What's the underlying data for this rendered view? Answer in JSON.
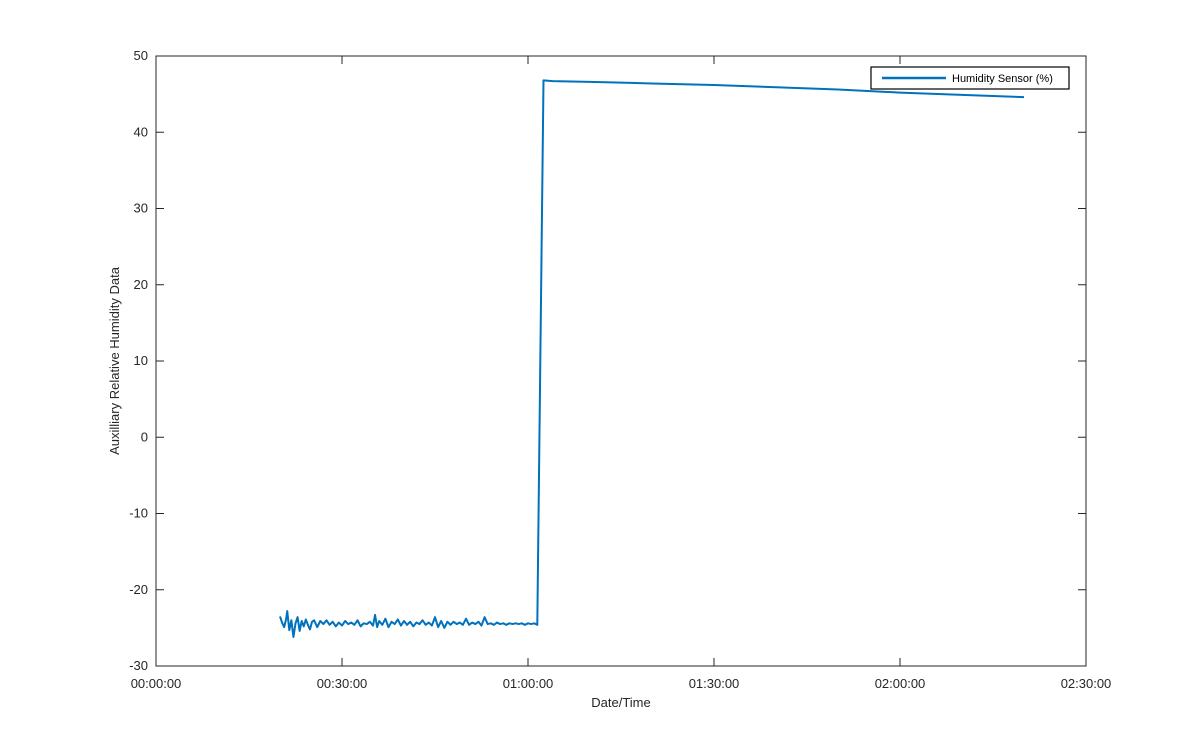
{
  "chart_data": {
    "type": "line",
    "xlabel": "Date/Time",
    "ylabel": "Auxilliary Relative Humidity Data",
    "x_tick_labels": [
      "00:00:00",
      "00:30:00",
      "01:00:00",
      "01:30:00",
      "02:00:00",
      "02:30:00"
    ],
    "y_tick_labels": [
      "-30",
      "-20",
      "-10",
      "0",
      "10",
      "20",
      "30",
      "40",
      "50"
    ],
    "xlim": [
      "00:00:00",
      "02:30:00"
    ],
    "ylim": [
      -30,
      50
    ],
    "grid": false,
    "legend_position": "top-right",
    "series": [
      {
        "name": "Humidity Sensor (%)",
        "color": "#0072BD",
        "points": [
          [
            "00:20:00",
            -23.5
          ],
          [
            "00:20:20",
            -24.3
          ],
          [
            "00:20:40",
            -24.9
          ],
          [
            "00:21:00",
            -23.8
          ],
          [
            "00:21:10",
            -22.8
          ],
          [
            "00:21:30",
            -25.3
          ],
          [
            "00:21:50",
            -24.0
          ],
          [
            "00:22:10",
            -26.2
          ],
          [
            "00:22:30",
            -24.4
          ],
          [
            "00:22:50",
            -23.6
          ],
          [
            "00:23:10",
            -25.4
          ],
          [
            "00:23:30",
            -24.1
          ],
          [
            "00:23:50",
            -24.8
          ],
          [
            "00:24:10",
            -23.9
          ],
          [
            "00:24:30",
            -24.6
          ],
          [
            "00:24:50",
            -25.2
          ],
          [
            "00:25:10",
            -24.2
          ],
          [
            "00:25:30",
            -24.0
          ],
          [
            "00:26:00",
            -24.9
          ],
          [
            "00:26:30",
            -24.1
          ],
          [
            "00:27:00",
            -24.5
          ],
          [
            "00:27:30",
            -24.0
          ],
          [
            "00:28:00",
            -24.6
          ],
          [
            "00:28:30",
            -24.2
          ],
          [
            "00:29:00",
            -24.8
          ],
          [
            "00:29:30",
            -24.3
          ],
          [
            "00:30:00",
            -24.7
          ],
          [
            "00:30:30",
            -24.1
          ],
          [
            "00:31:00",
            -24.5
          ],
          [
            "00:31:30",
            -24.3
          ],
          [
            "00:32:00",
            -24.6
          ],
          [
            "00:32:30",
            -24.0
          ],
          [
            "00:33:00",
            -24.8
          ],
          [
            "00:33:30",
            -24.4
          ],
          [
            "00:34:00",
            -24.5
          ],
          [
            "00:34:30",
            -24.2
          ],
          [
            "00:35:00",
            -24.7
          ],
          [
            "00:35:20",
            -23.3
          ],
          [
            "00:35:40",
            -24.9
          ],
          [
            "00:36:00",
            -24.1
          ],
          [
            "00:36:30",
            -24.6
          ],
          [
            "00:37:00",
            -23.8
          ],
          [
            "00:37:30",
            -24.9
          ],
          [
            "00:38:00",
            -24.2
          ],
          [
            "00:38:30",
            -24.5
          ],
          [
            "00:39:00",
            -23.9
          ],
          [
            "00:39:30",
            -24.7
          ],
          [
            "00:40:00",
            -24.1
          ],
          [
            "00:40:30",
            -24.6
          ],
          [
            "00:41:00",
            -24.2
          ],
          [
            "00:41:30",
            -24.8
          ],
          [
            "00:42:00",
            -24.3
          ],
          [
            "00:42:30",
            -24.5
          ],
          [
            "00:43:00",
            -24.0
          ],
          [
            "00:43:30",
            -24.6
          ],
          [
            "00:44:00",
            -24.3
          ],
          [
            "00:44:30",
            -24.7
          ],
          [
            "00:45:00",
            -23.6
          ],
          [
            "00:45:30",
            -24.9
          ],
          [
            "00:46:00",
            -24.1
          ],
          [
            "00:46:30",
            -25.0
          ],
          [
            "00:47:00",
            -24.2
          ],
          [
            "00:47:30",
            -24.6
          ],
          [
            "00:48:00",
            -24.2
          ],
          [
            "00:48:30",
            -24.5
          ],
          [
            "00:49:00",
            -24.3
          ],
          [
            "00:49:30",
            -24.6
          ],
          [
            "00:50:00",
            -23.8
          ],
          [
            "00:50:30",
            -24.6
          ],
          [
            "00:51:00",
            -24.3
          ],
          [
            "00:51:30",
            -24.5
          ],
          [
            "00:52:00",
            -24.2
          ],
          [
            "00:52:30",
            -24.7
          ],
          [
            "00:53:00",
            -23.6
          ],
          [
            "00:53:30",
            -24.5
          ],
          [
            "00:54:00",
            -24.4
          ],
          [
            "00:54:30",
            -24.6
          ],
          [
            "00:55:00",
            -24.3
          ],
          [
            "00:55:30",
            -24.5
          ],
          [
            "00:56:00",
            -24.4
          ],
          [
            "00:56:30",
            -24.6
          ],
          [
            "00:57:00",
            -24.4
          ],
          [
            "00:57:30",
            -24.5
          ],
          [
            "00:58:00",
            -24.4
          ],
          [
            "00:58:30",
            -24.5
          ],
          [
            "00:59:00",
            -24.4
          ],
          [
            "00:59:30",
            -24.6
          ],
          [
            "01:00:00",
            -24.4
          ],
          [
            "01:00:30",
            -24.5
          ],
          [
            "01:01:00",
            -24.4
          ],
          [
            "01:01:30",
            -24.6
          ],
          [
            "01:02:30",
            46.8
          ],
          [
            "01:04:00",
            46.7
          ],
          [
            "01:10:00",
            46.6
          ],
          [
            "01:20:00",
            46.4
          ],
          [
            "01:30:00",
            46.2
          ],
          [
            "01:40:00",
            45.9
          ],
          [
            "01:50:00",
            45.6
          ],
          [
            "02:00:00",
            45.2
          ],
          [
            "02:10:00",
            44.9
          ],
          [
            "02:20:00",
            44.6
          ]
        ]
      }
    ]
  }
}
